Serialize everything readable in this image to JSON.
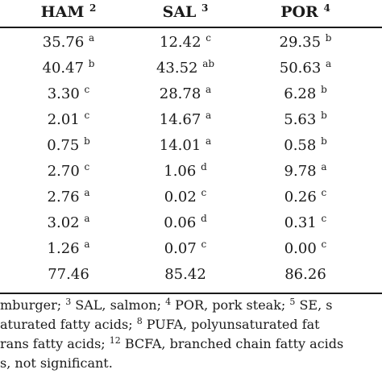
{
  "columns": [
    {
      "name": "HAM",
      "note": "2"
    },
    {
      "name": "SAL",
      "note": "3"
    },
    {
      "name": "POR",
      "note": "4"
    }
  ],
  "rows": [
    [
      {
        "v": "35.76",
        "s": "a"
      },
      {
        "v": "12.42",
        "s": "c"
      },
      {
        "v": "29.35",
        "s": "b"
      }
    ],
    [
      {
        "v": "40.47",
        "s": "b"
      },
      {
        "v": "43.52",
        "s": "ab"
      },
      {
        "v": "50.63",
        "s": "a"
      }
    ],
    [
      {
        "v": "3.30",
        "s": "c"
      },
      {
        "v": "28.78",
        "s": "a"
      },
      {
        "v": "6.28",
        "s": "b"
      }
    ],
    [
      {
        "v": "2.01",
        "s": "c"
      },
      {
        "v": "14.67",
        "s": "a"
      },
      {
        "v": "5.63",
        "s": "b"
      }
    ],
    [
      {
        "v": "0.75",
        "s": "b"
      },
      {
        "v": "14.01",
        "s": "a"
      },
      {
        "v": "0.58",
        "s": "b"
      }
    ],
    [
      {
        "v": "2.70",
        "s": "c"
      },
      {
        "v": "1.06",
        "s": "d"
      },
      {
        "v": "9.78",
        "s": "a"
      }
    ],
    [
      {
        "v": "2.76",
        "s": "a"
      },
      {
        "v": "0.02",
        "s": "c"
      },
      {
        "v": "0.26",
        "s": "c"
      }
    ],
    [
      {
        "v": "3.02",
        "s": "a"
      },
      {
        "v": "0.06",
        "s": "d"
      },
      {
        "v": "0.31",
        "s": "c"
      }
    ],
    [
      {
        "v": "1.26",
        "s": "a"
      },
      {
        "v": "0.07",
        "s": "c"
      },
      {
        "v": "0.00",
        "s": "c"
      }
    ],
    [
      {
        "v": "77.46",
        "s": ""
      },
      {
        "v": "85.42",
        "s": ""
      },
      {
        "v": "86.26",
        "s": ""
      }
    ]
  ],
  "footnotes": {
    "line1": [
      {
        "t": "mburger; "
      },
      {
        "sup": "3"
      },
      {
        "t": " SAL, salmon; "
      },
      {
        "sup": "4"
      },
      {
        "t": " POR, pork steak; "
      },
      {
        "sup": "5"
      },
      {
        "t": " SE, s"
      }
    ],
    "line2": [
      {
        "t": "aturated fatty acids; "
      },
      {
        "sup": "8"
      },
      {
        "t": " PUFA, polyunsaturated fat"
      }
    ],
    "line3": [
      {
        "t": "rans fatty acids; "
      },
      {
        "sup": "12"
      },
      {
        "t": " BCFA, branched chain fatty acids"
      }
    ],
    "line4": [
      {
        "t": "s, not significant."
      }
    ]
  }
}
